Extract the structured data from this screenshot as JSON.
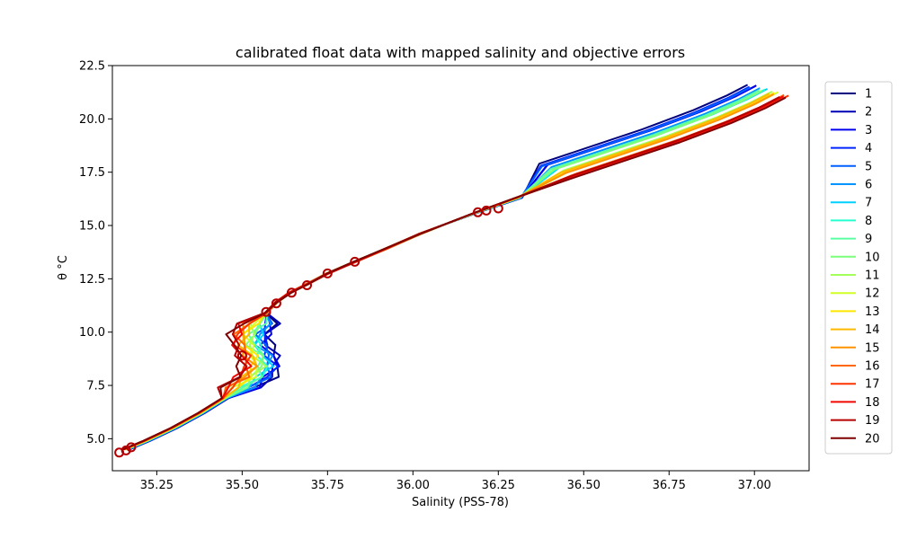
{
  "chart_data": {
    "type": "line",
    "title": "calibrated float data with mapped salinity and objective errors",
    "xlabel": "Salinity (PSS-78)",
    "ylabel": "θ °C",
    "xlim": [
      35.12,
      37.16
    ],
    "ylim": [
      3.5,
      22.5
    ],
    "x_ticks": [
      35.25,
      35.5,
      35.75,
      36.0,
      36.25,
      36.5,
      36.75,
      37.0
    ],
    "x_tick_labels": [
      "35.25",
      "35.50",
      "35.75",
      "36.00",
      "36.25",
      "36.50",
      "36.75",
      "37.00"
    ],
    "y_ticks": [
      5.0,
      7.5,
      10.0,
      12.5,
      15.0,
      17.5,
      20.0,
      22.5
    ],
    "y_tick_labels": [
      "5.0",
      "7.5",
      "10.0",
      "12.5",
      "15.0",
      "17.5",
      "20.0",
      "22.5"
    ],
    "grid": false,
    "legend_position": "right-outside",
    "series": [
      {
        "name": "1",
        "color": "#00007f"
      },
      {
        "name": "2",
        "color": "#0000b6"
      },
      {
        "name": "3",
        "color": "#0000f1"
      },
      {
        "name": "4",
        "color": "#0024ff"
      },
      {
        "name": "5",
        "color": "#0060ff"
      },
      {
        "name": "6",
        "color": "#0094ff"
      },
      {
        "name": "7",
        "color": "#00d0ff"
      },
      {
        "name": "8",
        "color": "#26ffd0"
      },
      {
        "name": "9",
        "color": "#5affa4"
      },
      {
        "name": "10",
        "color": "#7dff7a"
      },
      {
        "name": "11",
        "color": "#a4ff5a"
      },
      {
        "name": "12",
        "color": "#d0ff26"
      },
      {
        "name": "13",
        "color": "#ffe600"
      },
      {
        "name": "14",
        "color": "#ffb900"
      },
      {
        "name": "15",
        "color": "#ff9400"
      },
      {
        "name": "16",
        "color": "#ff6800"
      },
      {
        "name": "17",
        "color": "#ff3500"
      },
      {
        "name": "18",
        "color": "#f10700"
      },
      {
        "name": "19",
        "color": "#b60000"
      },
      {
        "name": "20",
        "color": "#7f0000"
      }
    ],
    "profile_path": [
      [
        35.16,
        4.5
      ],
      [
        35.22,
        4.9
      ],
      [
        35.3,
        5.5
      ],
      [
        35.38,
        6.2
      ],
      [
        35.45,
        6.9
      ],
      [
        35.5,
        7.4
      ],
      [
        35.54,
        7.9
      ],
      [
        35.56,
        8.4
      ],
      [
        35.55,
        8.9
      ],
      [
        35.53,
        9.4
      ],
      [
        35.53,
        9.9
      ],
      [
        35.55,
        10.4
      ],
      [
        35.57,
        10.9
      ],
      [
        35.6,
        11.4
      ],
      [
        35.64,
        11.85
      ],
      [
        35.69,
        12.25
      ],
      [
        35.75,
        12.75
      ],
      [
        35.83,
        13.3
      ],
      [
        35.92,
        13.9
      ],
      [
        36.02,
        14.6
      ],
      [
        36.1,
        15.1
      ],
      [
        36.18,
        15.6
      ],
      [
        36.3,
        16.3
      ],
      [
        36.45,
        17.3
      ],
      [
        36.6,
        18.1
      ],
      [
        36.75,
        18.9
      ],
      [
        36.9,
        19.8
      ],
      [
        37.0,
        20.5
      ],
      [
        37.06,
        21.0
      ]
    ],
    "mapped_salinity_markers": [
      [
        35.16,
        4.45
      ],
      [
        35.175,
        4.6
      ],
      [
        35.14,
        4.35
      ],
      [
        35.5,
        8.9
      ],
      [
        35.57,
        10.95
      ],
      [
        35.6,
        11.35
      ],
      [
        35.645,
        11.85
      ],
      [
        35.69,
        12.2
      ],
      [
        35.75,
        12.75
      ],
      [
        35.83,
        13.3
      ],
      [
        36.19,
        15.62
      ],
      [
        36.215,
        15.7
      ],
      [
        36.25,
        15.8
      ]
    ]
  }
}
